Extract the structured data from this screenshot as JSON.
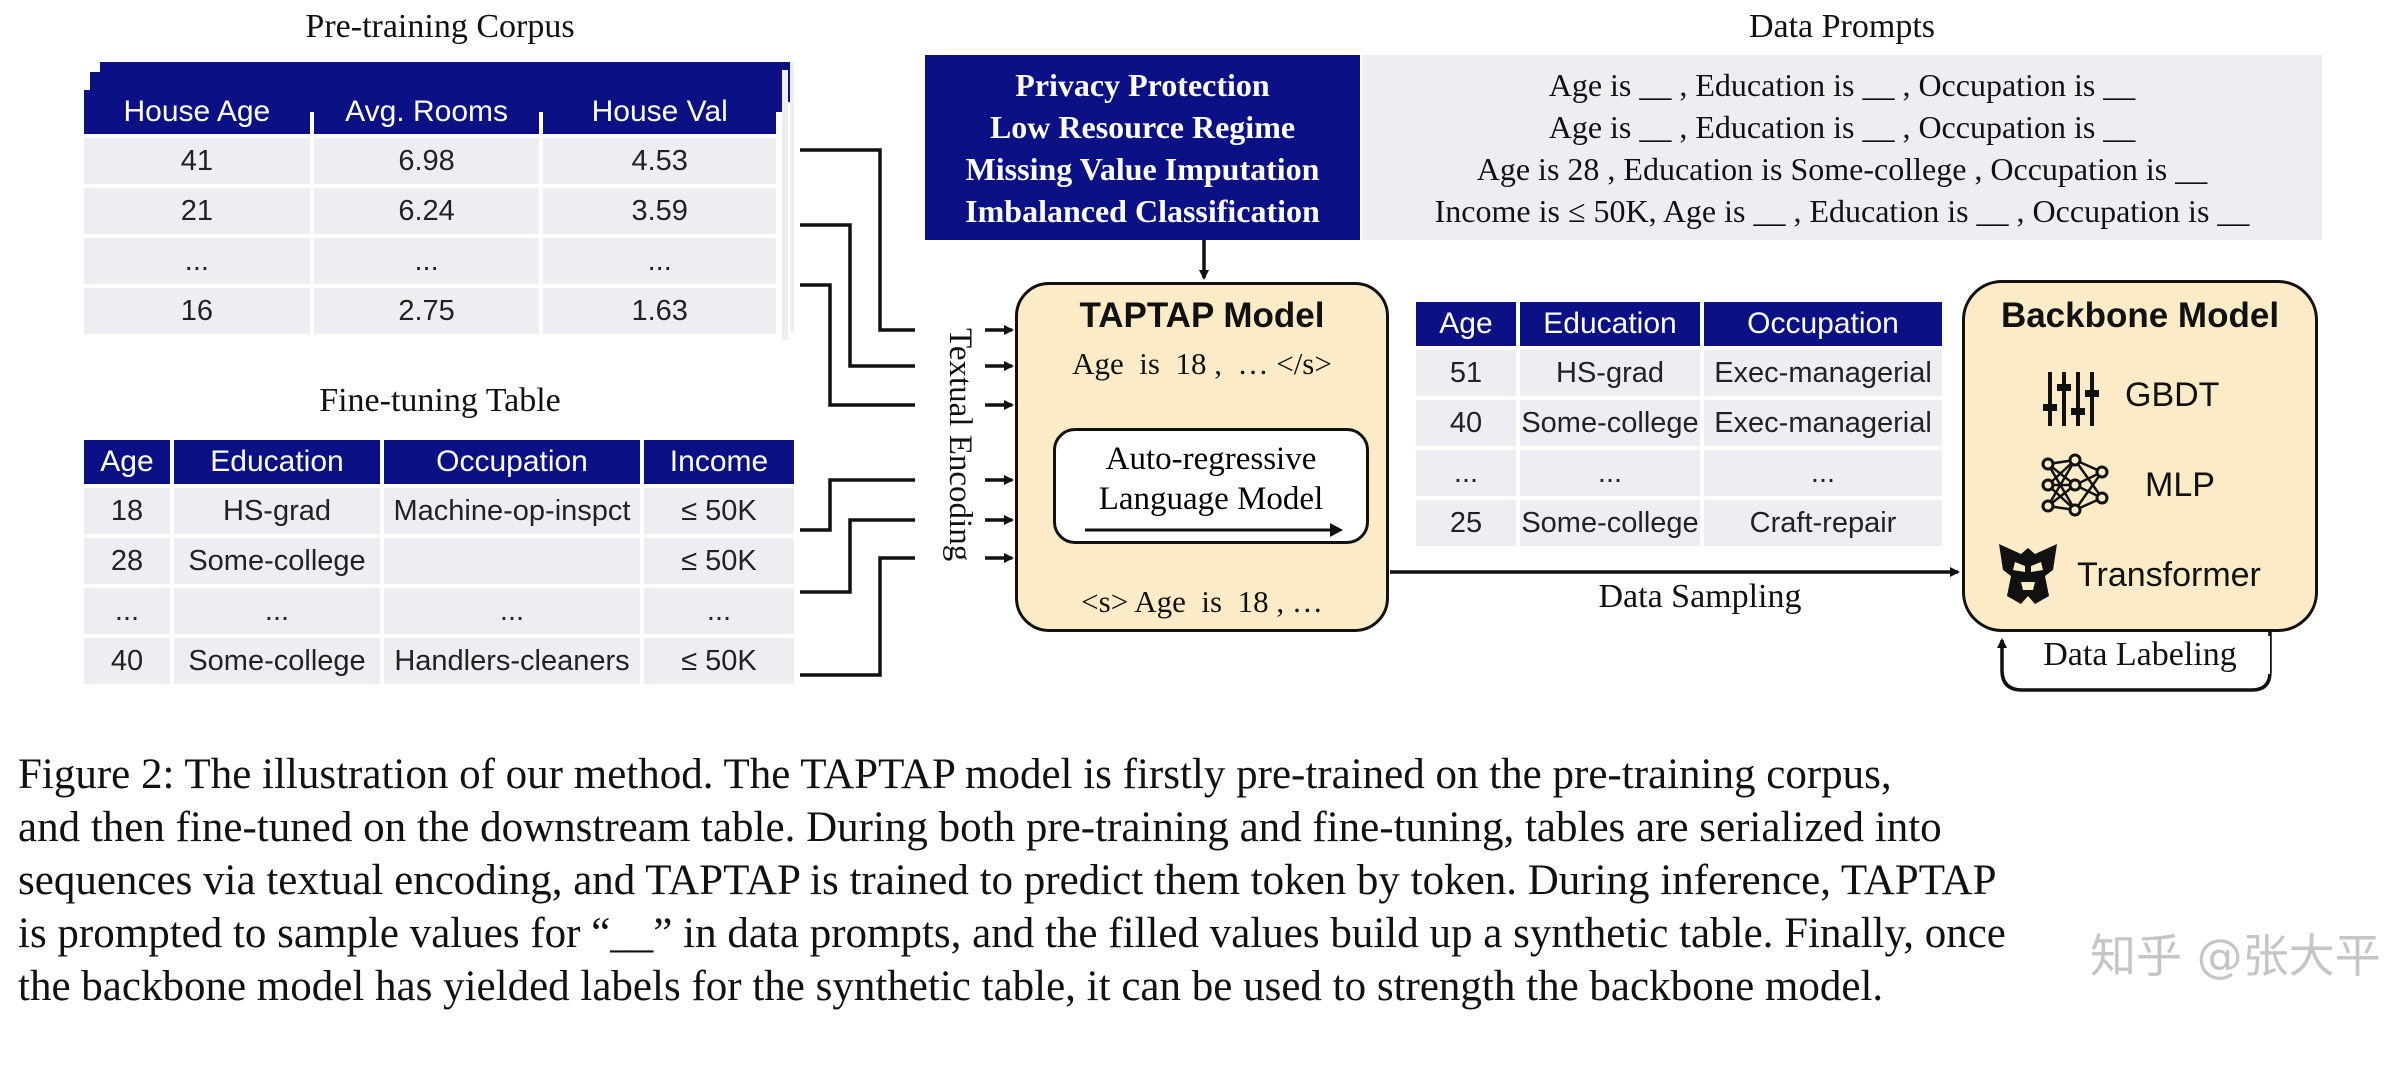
{
  "pretraining": {
    "title": "Pre-training Corpus",
    "headers": [
      "House Age",
      "Avg. Rooms",
      "House Val"
    ],
    "rows": [
      [
        "41",
        "6.98",
        "4.53"
      ],
      [
        "21",
        "6.24",
        "3.59"
      ],
      [
        "...",
        "...",
        "..."
      ],
      [
        "16",
        "2.75",
        "1.63"
      ]
    ]
  },
  "finetuning": {
    "title": "Fine-tuning Table",
    "headers": [
      "Age",
      "Education",
      "Occupation",
      "Income"
    ],
    "rows": [
      [
        "18",
        "HS-grad",
        "Machine-op-inspct",
        "≤ 50K"
      ],
      [
        "28",
        "Some-college",
        "",
        "≤ 50K"
      ],
      [
        "...",
        "...",
        "...",
        "..."
      ],
      [
        "40",
        "Some-college",
        "Handlers-cleaners",
        "≤ 50K"
      ]
    ]
  },
  "textual_encoding": "Textual Encoding",
  "tasks": [
    "Privacy Protection",
    "Low Resource Regime",
    "Missing Value Imputation",
    "Imbalanced Classification"
  ],
  "data_prompts": {
    "title": "Data Prompts",
    "lines": [
      "Age is __ , Education is __ , Occupation is __",
      "Age is __ , Education is __ , Occupation is __",
      "Age is 28 , Education is Some-college , Occupation is __",
      "Income is ≤ 50K, Age is __ , Education is __ , Occupation is __"
    ]
  },
  "model": {
    "title": "TAPTAP Model",
    "output_text": "Age  is  18 ,  … </s>",
    "lm_line1": "Auto-regressive",
    "lm_line2": "Language Model",
    "input_text": "<s> Age  is  18 , …"
  },
  "synthetic": {
    "headers": [
      "Age",
      "Education",
      "Occupation"
    ],
    "rows": [
      [
        "51",
        "HS-grad",
        "Exec-managerial"
      ],
      [
        "40",
        "Some-college",
        "Exec-managerial"
      ],
      [
        "...",
        "...",
        "..."
      ],
      [
        "25",
        "Some-college",
        "Craft-repair"
      ]
    ]
  },
  "data_sampling": "Data Sampling",
  "backbone": {
    "title": "Backbone Model",
    "items": [
      {
        "icon": "sliders-icon",
        "label": "GBDT"
      },
      {
        "icon": "neural-network-icon",
        "label": "MLP"
      },
      {
        "icon": "transformer-logo-icon",
        "label": "Transformer"
      }
    ]
  },
  "data_labeling": "Data Labeling",
  "caption": {
    "line1": "Figure 2: The illustration of our method. The TAPTAP model is firstly pre-trained on the pre-training corpus,",
    "line2": "and then fine-tuned on the downstream table. During both pre-training and fine-tuning, tables are serialized into",
    "line3": "sequences via textual encoding, and TAPTAP is trained to predict them token by token. During inference, TAPTAP",
    "line4": "is prompted to sample values for “__” in data prompts, and the filled values build up a synthetic table. Finally, once",
    "line5": "the backbone model has yielded labels for the synthetic table, it can be used to strength the backbone model."
  },
  "watermark": "知乎 @张大平"
}
